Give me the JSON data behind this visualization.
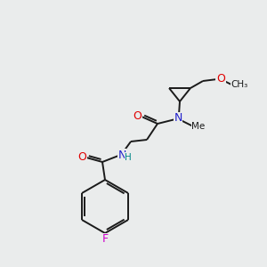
{
  "bg_color": "#eaecec",
  "bond_color": "#1a1a1a",
  "atom_colors": {
    "O": "#e00000",
    "N": "#2020cc",
    "F": "#cc00cc",
    "H": "#008888",
    "C": "#1a1a1a"
  }
}
